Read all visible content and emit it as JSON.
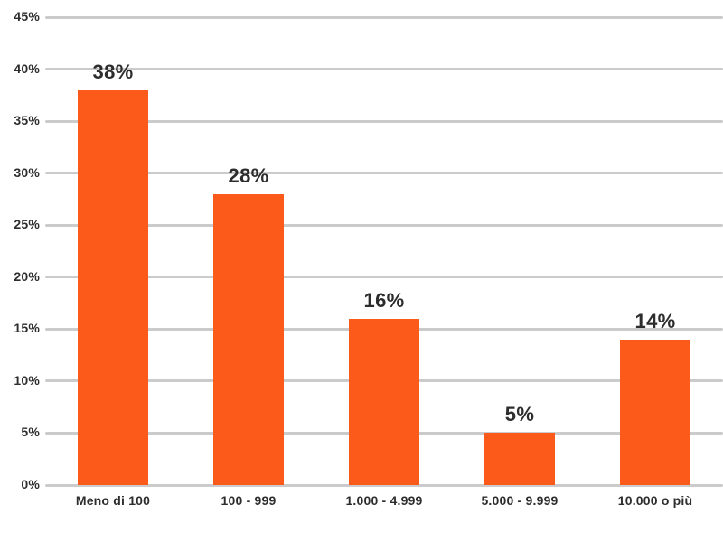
{
  "chart_data": {
    "type": "bar",
    "title": "",
    "xlabel": "",
    "ylabel": "",
    "categories": [
      "Meno di 100",
      "100 - 999",
      "1.000 - 4.999",
      "5.000 - 9.999",
      "10.000 o più"
    ],
    "values": [
      38,
      28,
      16,
      5,
      14
    ],
    "data_labels": [
      "38%",
      "28%",
      "16%",
      "5%",
      "14%"
    ],
    "ylim": [
      0,
      45
    ],
    "ytick_step": 5,
    "ytick_labels": [
      "0%",
      "5%",
      "10%",
      "15%",
      "20%",
      "25%",
      "30%",
      "35%",
      "40%",
      "45%"
    ],
    "grid": true,
    "legend": false,
    "colors": {
      "bar": "#FC5A1A",
      "gridline": "#CBCBCB",
      "text": "#2D2D2D"
    }
  }
}
